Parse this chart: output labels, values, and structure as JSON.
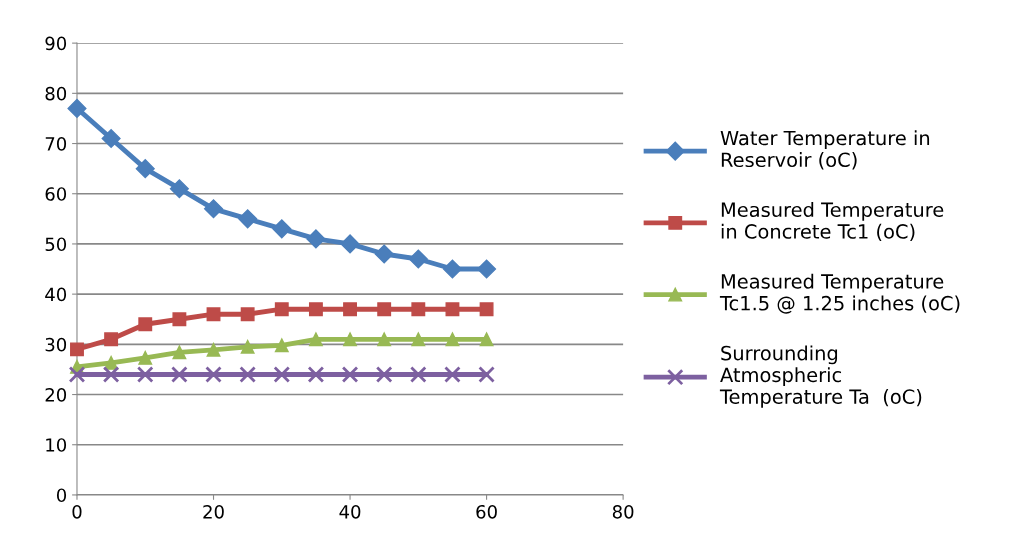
{
  "chart_data": {
    "type": "line",
    "x": [
      0,
      5,
      10,
      15,
      20,
      25,
      30,
      35,
      40,
      45,
      50,
      55,
      60
    ],
    "xlim": [
      0,
      80
    ],
    "xticks": [
      0,
      20,
      40,
      60,
      80
    ],
    "ylim": [
      0,
      90
    ],
    "yticks": [
      0,
      10,
      20,
      30,
      40,
      50,
      60,
      70,
      80,
      90
    ],
    "grid": "y",
    "legend": "right",
    "series": [
      {
        "name": "Water Temperature in\nReservoir (oC)",
        "color": "#4a7ebb",
        "marker": "diamond",
        "values": [
          77,
          71,
          65,
          61,
          57,
          55,
          53,
          51,
          50,
          48,
          47,
          45,
          45
        ]
      },
      {
        "name": "Measured Temperature\nin Concrete Tc1 (oC)",
        "color": "#be4b48",
        "marker": "square",
        "values": [
          29,
          31,
          34,
          35,
          36,
          36,
          37,
          37,
          37,
          37,
          37,
          37,
          37
        ]
      },
      {
        "name": "Measured Temperature\nTc1.5 @ 1.25 inches (oC)",
        "color": "#98b954",
        "marker": "triangle",
        "values": [
          25.5,
          26.3,
          27.3,
          28.4,
          28.9,
          29.5,
          29.8,
          31,
          31,
          31,
          31,
          31,
          31
        ]
      },
      {
        "name": "Surrounding\nAtmospheric\nTemperature Ta  (oC)",
        "color": "#7d60a0",
        "marker": "cross",
        "values": [
          24,
          24,
          24,
          24,
          24,
          24,
          24,
          24,
          24,
          24,
          24,
          24,
          24
        ]
      }
    ]
  }
}
